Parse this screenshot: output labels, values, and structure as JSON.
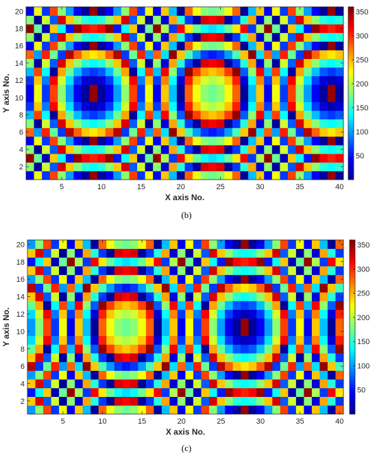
{
  "colors": {
    "jet": [
      "#00008f",
      "#0000ff",
      "#00ffff",
      "#ffff00",
      "#ff0000",
      "#800000"
    ],
    "axis": "#262626"
  },
  "chart_data": [
    {
      "type": "heatmap",
      "caption": "(b)",
      "xlabel": "X axis No.",
      "ylabel": "Y axis No.",
      "x": [
        1,
        40
      ],
      "y": [
        1,
        20
      ],
      "xlim": [
        0.5,
        40.5
      ],
      "ylim": [
        0.5,
        20.5
      ],
      "xticks": [
        5,
        10,
        15,
        20,
        25,
        30,
        35,
        40
      ],
      "yticks": [
        2,
        4,
        6,
        8,
        10,
        12,
        14,
        16,
        18,
        20
      ],
      "colorbar": {
        "range": [
          0,
          360
        ],
        "ticks": [
          50,
          100,
          150,
          200,
          250,
          300,
          350
        ]
      },
      "wrapped_phase": {
        "center": [
          24,
          10.5
        ],
        "k": 0.2094,
        "phase0": 170,
        "period": 360
      },
      "grid": false
    },
    {
      "type": "heatmap",
      "caption": "(c)",
      "xlabel": "X axis No.",
      "ylabel": "Y axis No.",
      "x": [
        1,
        40
      ],
      "y": [
        1,
        20
      ],
      "xlim": [
        0.5,
        40.5
      ],
      "ylim": [
        0.5,
        20.5
      ],
      "xticks": [
        5,
        10,
        15,
        20,
        25,
        30,
        35,
        40
      ],
      "yticks": [
        2,
        4,
        6,
        8,
        10,
        12,
        14,
        16,
        18,
        20
      ],
      "colorbar": {
        "range": [
          0,
          360
        ],
        "ticks": [
          50,
          100,
          150,
          200,
          250,
          300,
          350
        ]
      },
      "wrapped_phase": {
        "center": [
          28,
          10.5
        ],
        "k": 0.2094,
        "phase0": 350,
        "period": 360
      },
      "grid": false
    }
  ]
}
